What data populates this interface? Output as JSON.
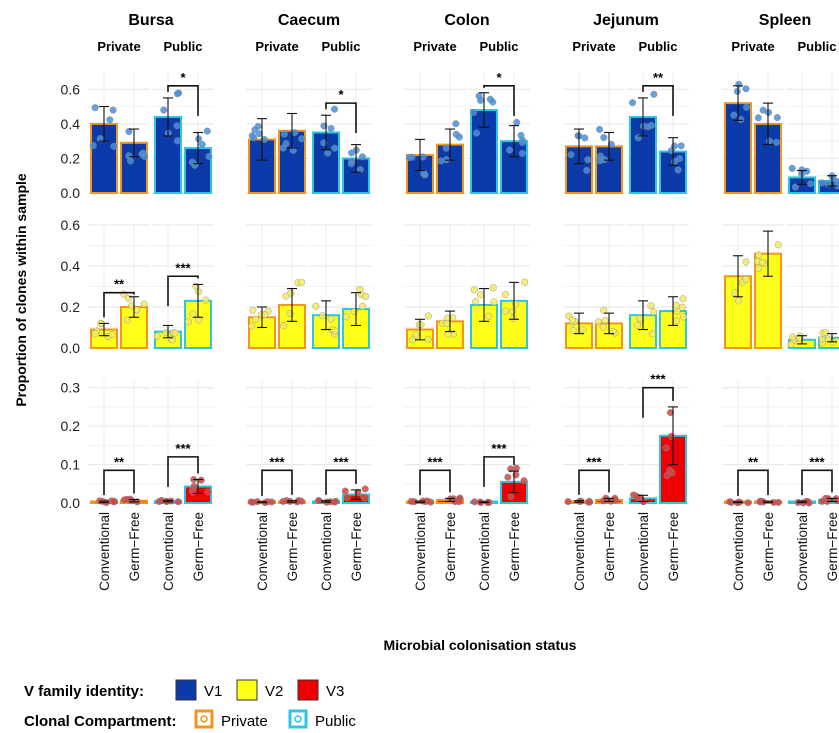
{
  "chart_data": {
    "type": "bar",
    "ylabel": "Proportion of clones within sample",
    "xlabel": "Microbial colonisation status",
    "tissues": [
      "Bursa",
      "Caecum",
      "Colon",
      "Jejunum",
      "Spleen"
    ],
    "compartments": [
      "Private",
      "Public"
    ],
    "statuses": [
      "Conventional",
      "Germ−Free"
    ],
    "panels": [
      {
        "family": "V1",
        "ylim": [
          0,
          0.7
        ],
        "yticks": [
          "0.0",
          "0.2",
          "0.4",
          "0.6"
        ],
        "ytick_values": [
          0,
          0.2,
          0.4,
          0.6
        ]
      },
      {
        "family": "V2",
        "ylim": [
          0,
          0.6
        ],
        "yticks": [
          "0.0",
          "0.2",
          "0.4",
          "0.6"
        ],
        "ytick_values": [
          0,
          0.2,
          0.4,
          0.6
        ]
      },
      {
        "family": "V3",
        "ylim": [
          0,
          0.32
        ],
        "yticks": [
          "0.0",
          "0.1",
          "0.2",
          "0.3"
        ],
        "ytick_values": [
          0,
          0.1,
          0.2,
          0.3
        ]
      }
    ],
    "values": {
      "V1": {
        "Bursa": {
          "Private": [
            0.4,
            0.29
          ],
          "Public": [
            0.44,
            0.26
          ]
        },
        "Caecum": {
          "Private": [
            0.31,
            0.36
          ],
          "Public": [
            0.35,
            0.2
          ]
        },
        "Colon": {
          "Private": [
            0.22,
            0.28
          ],
          "Public": [
            0.48,
            0.3
          ]
        },
        "Jejunum": {
          "Private": [
            0.27,
            0.27
          ],
          "Public": [
            0.44,
            0.24
          ]
        },
        "Spleen": {
          "Private": [
            0.52,
            0.4
          ],
          "Public": [
            0.09,
            0.07
          ]
        }
      },
      "V2": {
        "Bursa": {
          "Private": [
            0.09,
            0.2
          ],
          "Public": [
            0.08,
            0.23
          ]
        },
        "Caecum": {
          "Private": [
            0.15,
            0.21
          ],
          "Public": [
            0.16,
            0.19
          ]
        },
        "Colon": {
          "Private": [
            0.09,
            0.13
          ],
          "Public": [
            0.21,
            0.23
          ]
        },
        "Jejunum": {
          "Private": [
            0.12,
            0.12
          ],
          "Public": [
            0.16,
            0.18
          ]
        },
        "Spleen": {
          "Private": [
            0.35,
            0.46
          ],
          "Public": [
            0.04,
            0.05
          ]
        }
      },
      "V3": {
        "Bursa": {
          "Private": [
            0.003,
            0.006
          ],
          "Public": [
            0.005,
            0.043
          ]
        },
        "Caecum": {
          "Private": [
            0.002,
            0.004
          ],
          "Public": [
            0.004,
            0.022
          ]
        },
        "Colon": {
          "Private": [
            0.003,
            0.008
          ],
          "Public": [
            0.002,
            0.055
          ]
        },
        "Jejunum": {
          "Private": [
            0.004,
            0.008
          ],
          "Public": [
            0.012,
            0.175
          ]
        },
        "Spleen": {
          "Private": [
            0.002,
            0.003
          ],
          "Public": [
            0.003,
            0.008
          ]
        }
      }
    },
    "errors": {
      "V1": {
        "Bursa": {
          "Private": [
            0.1,
            0.08
          ],
          "Public": [
            0.11,
            0.09
          ]
        },
        "Caecum": {
          "Private": [
            0.12,
            0.1
          ],
          "Public": [
            0.1,
            0.08
          ]
        },
        "Colon": {
          "Private": [
            0.09,
            0.09
          ],
          "Public": [
            0.1,
            0.09
          ]
        },
        "Jejunum": {
          "Private": [
            0.1,
            0.08
          ],
          "Public": [
            0.11,
            0.08
          ]
        },
        "Spleen": {
          "Private": [
            0.1,
            0.12
          ],
          "Public": [
            0.04,
            0.03
          ]
        }
      },
      "V2": {
        "Bursa": {
          "Private": [
            0.03,
            0.05
          ],
          "Public": [
            0.03,
            0.08
          ]
        },
        "Caecum": {
          "Private": [
            0.05,
            0.08
          ],
          "Public": [
            0.07,
            0.08
          ]
        },
        "Colon": {
          "Private": [
            0.05,
            0.05
          ],
          "Public": [
            0.08,
            0.09
          ]
        },
        "Jejunum": {
          "Private": [
            0.05,
            0.05
          ],
          "Public": [
            0.07,
            0.07
          ]
        },
        "Spleen": {
          "Private": [
            0.1,
            0.11
          ],
          "Public": [
            0.02,
            0.02
          ]
        }
      },
      "V3": {
        "Bursa": {
          "Private": [
            0.002,
            0.003
          ],
          "Public": [
            0.002,
            0.018
          ]
        },
        "Caecum": {
          "Private": [
            0.001,
            0.002
          ],
          "Public": [
            0.002,
            0.012
          ]
        },
        "Colon": {
          "Private": [
            0.002,
            0.004
          ],
          "Public": [
            0.001,
            0.028
          ]
        },
        "Jejunum": {
          "Private": [
            0.002,
            0.004
          ],
          "Public": [
            0.008,
            0.075
          ]
        },
        "Spleen": {
          "Private": [
            0.001,
            0.002
          ],
          "Public": [
            0.002,
            0.004
          ]
        }
      }
    },
    "significance": [
      {
        "family": "V1",
        "tissue": "Bursa",
        "compartment": "Public",
        "label": "*",
        "height": 0.62
      },
      {
        "family": "V1",
        "tissue": "Caecum",
        "compartment": "Public",
        "label": "*",
        "height": 0.52
      },
      {
        "family": "V1",
        "tissue": "Colon",
        "compartment": "Public",
        "label": "*",
        "height": 0.62
      },
      {
        "family": "V1",
        "tissue": "Jejunum",
        "compartment": "Public",
        "label": "**",
        "height": 0.62
      },
      {
        "family": "V2",
        "tissue": "Bursa",
        "compartment": "Private",
        "label": "**",
        "height": 0.27
      },
      {
        "family": "V2",
        "tissue": "Bursa",
        "compartment": "Public",
        "label": "***",
        "height": 0.35
      },
      {
        "family": "V3",
        "tissue": "Bursa",
        "compartment": "Private",
        "label": "**",
        "height": 0.085
      },
      {
        "family": "V3",
        "tissue": "Bursa",
        "compartment": "Public",
        "label": "***",
        "height": 0.12
      },
      {
        "family": "V3",
        "tissue": "Caecum",
        "compartment": "Private",
        "label": "***",
        "height": 0.085
      },
      {
        "family": "V3",
        "tissue": "Caecum",
        "compartment": "Public",
        "label": "***",
        "height": 0.085
      },
      {
        "family": "V3",
        "tissue": "Colon",
        "compartment": "Private",
        "label": "***",
        "height": 0.085
      },
      {
        "family": "V3",
        "tissue": "Colon",
        "compartment": "Public",
        "label": "***",
        "height": 0.12
      },
      {
        "family": "V3",
        "tissue": "Jejunum",
        "compartment": "Private",
        "label": "***",
        "height": 0.085
      },
      {
        "family": "V3",
        "tissue": "Jejunum",
        "compartment": "Public",
        "label": "***",
        "height": 0.3
      },
      {
        "family": "V3",
        "tissue": "Spleen",
        "compartment": "Private",
        "label": "**",
        "height": 0.085
      },
      {
        "family": "V3",
        "tissue": "Spleen",
        "compartment": "Public",
        "label": "***",
        "height": 0.085
      }
    ],
    "colors": {
      "V1": "#0c3aa8",
      "V2": "#ffff1a",
      "V3": "#ee0000",
      "Private": "#f0961e",
      "Public": "#2ec5e0",
      "points": {
        "V1": "#4a8ed8",
        "V2": "#f2ea60",
        "V3": "#cc4a4a"
      }
    },
    "grid": true,
    "legend": {
      "position": "bottom-left",
      "v_family_title": "V family identity:",
      "v_family_items": [
        "V1",
        "V2",
        "V3"
      ],
      "compartment_title": "Clonal Compartment:",
      "compartment_items": [
        "Private",
        "Public"
      ]
    }
  }
}
